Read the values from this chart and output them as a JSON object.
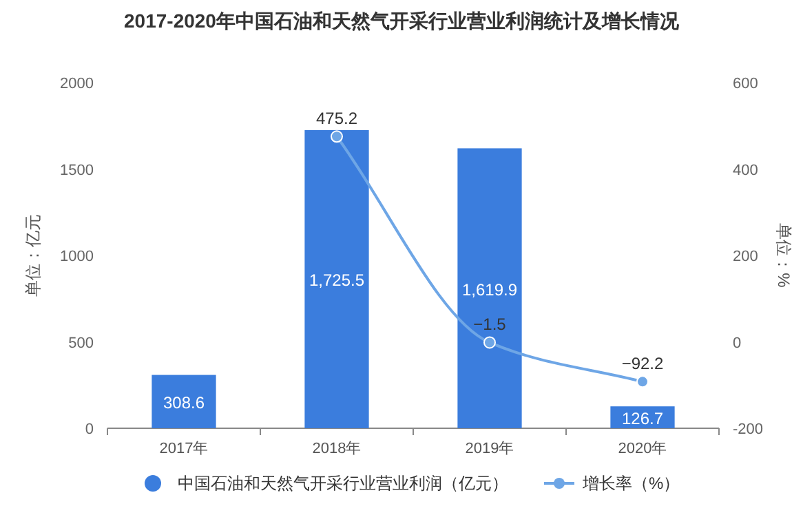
{
  "chart_data": {
    "type": "bar",
    "title": "2017-2020年中国石油和天然气开采行业营业利润统计及增长情况",
    "ylabel": "单位：亿元",
    "y2label": "单位：%",
    "categories": [
      "2017年",
      "2018年",
      "2019年",
      "2020年"
    ],
    "series": [
      {
        "name": "中国石油和天然气开采行业营业利润（亿元）",
        "color": "#3b7ddd",
        "values": [
          308.6,
          1725.5,
          1619.9,
          126.7
        ],
        "value_labels": [
          "308.6",
          "1,725.5",
          "1,619.9",
          "126.7"
        ]
      },
      {
        "name": "增长率（%）",
        "type": "line",
        "axis": "y2",
        "color": "#6ea6e6",
        "marker": "circle",
        "values": [
          null,
          475.2,
          -1.5,
          -92.2
        ],
        "value_labels": [
          null,
          "475.2",
          "−1.5",
          "−92.2"
        ]
      }
    ],
    "ylim": [
      0,
      2000
    ],
    "yticks": [
      0,
      500,
      1000,
      1500,
      2000
    ],
    "y2lim": [
      -200,
      600
    ],
    "y2ticks": [
      -200,
      0,
      200,
      400,
      600
    ],
    "legend": "bottom"
  }
}
